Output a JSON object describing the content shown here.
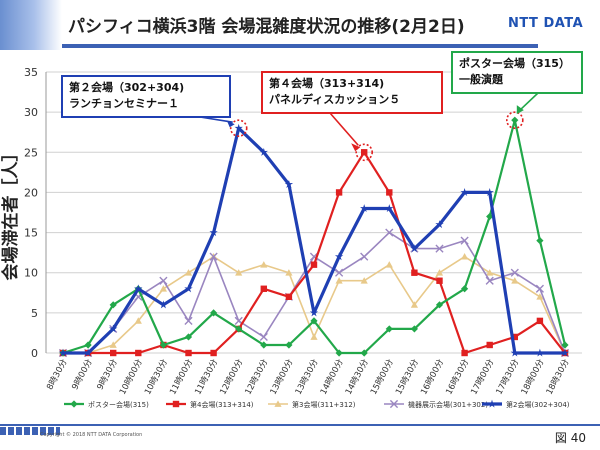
{
  "title": "パシフィコ横浜3階 会場混雑度状況の推移(2月2日)",
  "logo": "NTT DATA",
  "copyright": "Copyright © 2018 NTT DATA Corporation",
  "figure_number": "図 40",
  "callouts": {
    "room2": {
      "line1": "第２会場（302+304)",
      "line2": "ランチョンセミナー１",
      "color": "#1f3fb3"
    },
    "room4": {
      "line1": "第４会場（313+314)",
      "line2": "パネルディスカッション５",
      "color": "#e02020"
    },
    "poster": {
      "line1": "ポスター会場（315）",
      "line2": "一般演題",
      "color": "#22a84a"
    }
  },
  "chart_data": {
    "type": "line",
    "xlabel": "",
    "ylabel": "会場滞在者［人］",
    "ylim": [
      0,
      35
    ],
    "yticks": [
      0,
      5,
      10,
      15,
      20,
      25,
      30,
      35
    ],
    "grid": true,
    "legend_position": "bottom",
    "categories": [
      "8時30分",
      "9時00分",
      "9時30分",
      "10時00分",
      "10時30分",
      "11時00分",
      "11時30分",
      "12時00分",
      "12時30分",
      "13時00分",
      "13時30分",
      "14時00分",
      "14時30分",
      "15時00分",
      "15時30分",
      "16時00分",
      "16時30分",
      "17時00分",
      "17時30分",
      "18時00分",
      "18時30分"
    ],
    "series": [
      {
        "name": "ポスター会場(315)",
        "color": "#22a84a",
        "marker": "diamond",
        "width": 2.2,
        "values": [
          0,
          1,
          6,
          8,
          1,
          2,
          5,
          3,
          1,
          1,
          4,
          0,
          0,
          3,
          3,
          6,
          8,
          17,
          29,
          14,
          1
        ]
      },
      {
        "name": "第4会場(313+314)",
        "color": "#e02020",
        "marker": "square",
        "width": 2.2,
        "values": [
          0,
          0,
          0,
          0,
          1,
          0,
          0,
          3,
          8,
          7,
          11,
          20,
          25,
          20,
          10,
          9,
          0,
          1,
          2,
          4,
          0
        ]
      },
      {
        "name": "第3会場(311+312)",
        "color": "#e8c98a",
        "marker": "triangle",
        "width": 1.6,
        "values": [
          0,
          0,
          1,
          4,
          8,
          10,
          12,
          10,
          11,
          10,
          2,
          9,
          9,
          11,
          6,
          10,
          12,
          10,
          9,
          7,
          0
        ]
      },
      {
        "name": "機器展示会場(301+302)",
        "color": "#9a86c0",
        "marker": "x",
        "width": 1.6,
        "values": [
          0,
          0,
          3,
          7,
          9,
          4,
          12,
          4,
          2,
          7,
          12,
          10,
          12,
          15,
          13,
          13,
          14,
          9,
          10,
          8,
          0
        ]
      },
      {
        "name": "第2会場(302+304)",
        "color": "#1f3fb3",
        "marker": "star",
        "width": 3.2,
        "values": [
          0,
          0,
          3,
          8,
          6,
          8,
          15,
          28,
          25,
          21,
          5,
          12,
          18,
          18,
          13,
          16,
          20,
          20,
          0,
          0,
          0
        ]
      }
    ],
    "highlights": [
      {
        "series": 4,
        "index": 7
      },
      {
        "series": 1,
        "index": 12
      },
      {
        "series": 0,
        "index": 18
      }
    ]
  }
}
